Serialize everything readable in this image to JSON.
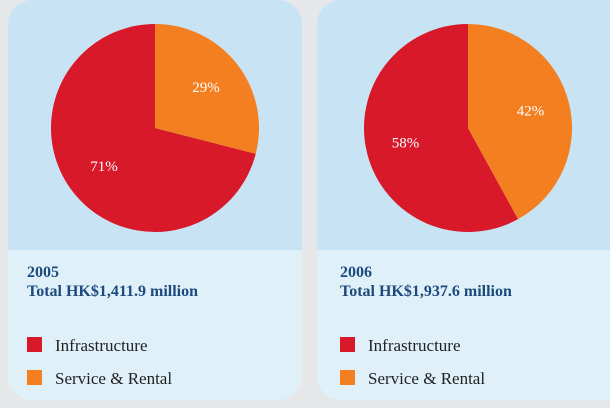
{
  "chart_data": [
    {
      "type": "pie",
      "title": "2005",
      "subtitle": "Total HK$1,411.9 million",
      "categories": [
        "Infrastructure",
        "Service & Rental"
      ],
      "values": [
        71,
        29
      ],
      "value_labels": [
        "71%",
        "29%"
      ],
      "colors": [
        "#d7192a",
        "#f47f20"
      ]
    },
    {
      "type": "pie",
      "title": "2006",
      "subtitle": "Total HK$1,937.6 million",
      "categories": [
        "Infrastructure",
        "Service & Rental"
      ],
      "values": [
        58,
        42
      ],
      "value_labels": [
        "58%",
        "42%"
      ],
      "colors": [
        "#d7192a",
        "#f47f20"
      ]
    }
  ]
}
